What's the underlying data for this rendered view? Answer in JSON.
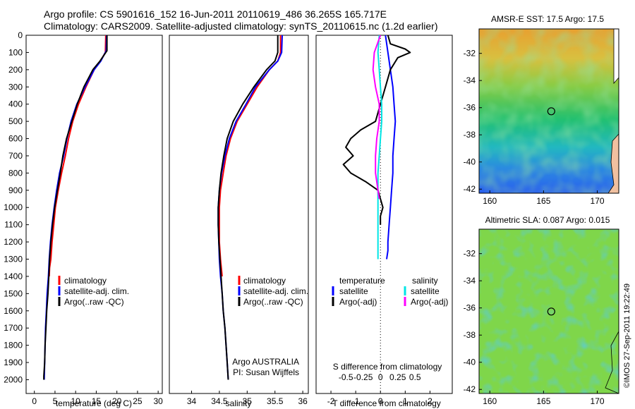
{
  "header": {
    "line1": "Argo profile: CS 5901616_152 16-Jun-2011 20110619_486 36.265S 165.717E",
    "line2": "Climatology: CARS2009. Satellite-adjusted climatology: synTS_20110615.nc (1.2d earlier)"
  },
  "credit": "©IMOS 27-Sep-2011 19:22:49",
  "argo_info": {
    "line1": "Argo AUSTRALIA",
    "line2": "PI: Susan Wijffels"
  },
  "colors": {
    "climatology": "#ff0000",
    "satellite": "#0000ff",
    "argo": "#000000",
    "sal_satellite": "#00e5e5",
    "sal_argo": "#ff00ff"
  },
  "chart_data": [
    {
      "type": "line",
      "id": "temperature",
      "xlabel": "temperature (deg C)",
      "xlim": [
        -2,
        31
      ],
      "ylim": [
        0,
        2080
      ],
      "xticks": [
        0,
        5,
        10,
        15,
        20,
        25,
        30
      ],
      "yticks": [
        0,
        100,
        200,
        300,
        400,
        500,
        600,
        700,
        800,
        900,
        1000,
        1100,
        1200,
        1300,
        1400,
        1500,
        1600,
        1700,
        1800,
        1900,
        2000
      ],
      "legend": [
        "climatology",
        "satellite-adj. clim.",
        "Argo(..raw -QC)"
      ],
      "series": [
        {
          "name": "climatology",
          "color": "#ff0000",
          "x": [
            17.3,
            17.2,
            16.0,
            14.5,
            12.5,
            10.7,
            9.3,
            8.3,
            7.5,
            6.6,
            5.8,
            5.1,
            4.7,
            4.3,
            4.0,
            3.7,
            3.6
          ],
          "y": [
            0,
            100,
            150,
            200,
            300,
            400,
            500,
            600,
            700,
            800,
            900,
            1000,
            1100,
            1200,
            1300,
            1350,
            1400
          ]
        },
        {
          "name": "satellite-adj. clim.",
          "color": "#0000ff",
          "x": [
            17.5,
            17.4,
            16.1,
            14.5,
            12.3,
            10.3,
            8.9,
            7.9,
            7.1,
            6.1,
            5.4,
            4.8,
            4.3,
            3.9,
            3.6,
            3.4,
            3.1,
            2.9,
            2.7,
            2.6,
            2.5,
            2.4
          ],
          "y": [
            0,
            90,
            150,
            200,
            300,
            400,
            500,
            600,
            700,
            800,
            900,
            1000,
            1100,
            1200,
            1300,
            1400,
            1500,
            1600,
            1700,
            1800,
            1900,
            2000
          ]
        },
        {
          "name": "Argo(..raw -QC)",
          "color": "#000000",
          "x": [
            17.6,
            17.6,
            15.9,
            14.2,
            12.0,
            10.4,
            9.1,
            7.8,
            6.9,
            6.3,
            5.6,
            4.9,
            4.4,
            4.0,
            3.7,
            3.5,
            3.3,
            3.0,
            2.8,
            2.6,
            2.5,
            2.3,
            2.3
          ],
          "y": [
            0,
            90,
            150,
            200,
            300,
            400,
            500,
            600,
            700,
            800,
            900,
            1000,
            1100,
            1200,
            1300,
            1400,
            1500,
            1600,
            1700,
            1800,
            1900,
            1980,
            2000
          ]
        }
      ]
    },
    {
      "type": "line",
      "id": "salinity",
      "xlabel": "salinity",
      "xlim": [
        33.6,
        36.1
      ],
      "ylim": [
        0,
        2080
      ],
      "xticks": [
        34,
        34.5,
        35,
        35.5,
        36
      ],
      "legend": [
        "climatology",
        "satellite-adj. clim.",
        "Argo(..raw -QC)"
      ],
      "series": [
        {
          "name": "climatology",
          "color": "#ff0000",
          "x": [
            35.6,
            35.6,
            35.55,
            35.4,
            35.18,
            35.0,
            34.82,
            34.7,
            34.62,
            34.57,
            34.52,
            34.5,
            34.5,
            34.5,
            34.52,
            34.55
          ],
          "y": [
            0,
            100,
            150,
            200,
            300,
            400,
            500,
            600,
            700,
            800,
            900,
            1000,
            1100,
            1200,
            1300,
            1400
          ]
        },
        {
          "name": "satellite-adj. clim.",
          "color": "#0000ff",
          "x": [
            35.63,
            35.62,
            35.55,
            35.4,
            35.15,
            34.98,
            34.8,
            34.68,
            34.6,
            34.54,
            34.5,
            34.48,
            34.48,
            34.49,
            34.5,
            34.52,
            34.55,
            34.57,
            34.6,
            34.62,
            34.64,
            34.66
          ],
          "y": [
            0,
            100,
            150,
            200,
            300,
            400,
            500,
            600,
            700,
            800,
            900,
            1000,
            1100,
            1200,
            1300,
            1400,
            1500,
            1600,
            1700,
            1800,
            1900,
            2000
          ]
        },
        {
          "name": "Argo(..raw -QC)",
          "color": "#000000",
          "x": [
            35.55,
            35.55,
            35.5,
            35.35,
            35.12,
            34.92,
            34.75,
            34.64,
            34.58,
            34.53,
            34.5,
            34.48,
            34.48,
            34.49,
            34.51,
            34.53,
            34.55,
            34.57,
            34.6,
            34.62,
            34.64,
            34.66
          ],
          "y": [
            0,
            100,
            150,
            200,
            300,
            400,
            500,
            600,
            700,
            800,
            900,
            1000,
            1100,
            1200,
            1300,
            1400,
            1500,
            1600,
            1700,
            1800,
            1900,
            2000
          ]
        }
      ]
    },
    {
      "type": "line",
      "id": "differences",
      "xlabel": "T difference from climatology",
      "xlabel2": "S difference from climatology",
      "xlim": [
        -2.6,
        2.9
      ],
      "ylim": [
        0,
        2080
      ],
      "xticks": [
        -2,
        -1,
        0,
        1,
        2
      ],
      "xticks_s": [
        -0.5,
        -0.25,
        0,
        0.25,
        0.5
      ],
      "xticks_s_labels": [
        "-0.5",
        "-0.25",
        "0",
        "0.25",
        "0.5"
      ],
      "legend_temperature_title": "temperature",
      "legend_salinity_title": "salinity",
      "legend": [
        "satellite",
        "Argo(-adj)",
        "satellite",
        "Argo(-adj)"
      ],
      "series": [
        {
          "name": "satellite",
          "color": "#0000ff",
          "x": [
            0.2,
            0.3,
            0.4,
            0.5,
            0.55,
            0.6,
            0.55,
            0.5,
            0.5,
            0.45,
            0.4,
            0.35,
            0.3,
            0.3,
            0.25
          ],
          "y": [
            0,
            100,
            200,
            300,
            400,
            500,
            600,
            700,
            800,
            900,
            1000,
            1100,
            1200,
            1250,
            1300
          ]
        },
        {
          "name": "Argo(-adj)",
          "color": "#000000",
          "x": [
            0.3,
            0.4,
            1.0,
            1.2,
            0.7,
            0.4,
            0.2,
            0.0,
            -0.2,
            -0.8,
            -1.2,
            -1.4,
            -1.1,
            -1.5,
            -1.2,
            -0.6,
            -0.1,
            0.0,
            0.1,
            0.0,
            0.0
          ],
          "y": [
            0,
            50,
            80,
            100,
            130,
            200,
            300,
            400,
            500,
            550,
            600,
            650,
            700,
            750,
            800,
            850,
            900,
            950,
            1000,
            1050,
            1100
          ]
        },
        {
          "name": "satellite",
          "color": "#00e5e5",
          "x": [
            -0.05,
            -0.1,
            -0.05,
            0.0,
            0.05,
            0.05,
            0.0,
            -0.05,
            -0.1,
            -0.1,
            -0.1,
            -0.1,
            -0.1
          ],
          "y": [
            0,
            100,
            200,
            300,
            400,
            500,
            600,
            700,
            800,
            900,
            1000,
            1100,
            1300
          ]
        },
        {
          "name": "Argo(-adj)",
          "color": "#ff00ff",
          "x": [
            0.0,
            -0.25,
            -0.3,
            -0.2,
            -0.05,
            -0.05,
            -0.15,
            -0.2,
            -0.2,
            -0.15,
            -0.1,
            -0.05
          ],
          "y": [
            0,
            100,
            200,
            300,
            400,
            500,
            600,
            700,
            800,
            850,
            900,
            950
          ]
        }
      ]
    },
    {
      "type": "heatmap",
      "id": "sst-map",
      "title": "AMSR-E SST: 17.5 Argo: 17.5",
      "xlim": [
        159,
        172
      ],
      "ylim": [
        -42.3,
        -30.2
      ],
      "xticks": [
        160,
        165,
        170
      ],
      "yticks": [
        -32,
        -34,
        -36,
        -38,
        -40,
        -42
      ],
      "marker": {
        "lon": 165.717,
        "lat": -36.265
      }
    },
    {
      "type": "heatmap",
      "id": "sla-map",
      "title": "Altimetric SLA: 0.087 Argo: 0.015",
      "xlim": [
        159,
        172
      ],
      "ylim": [
        -42.3,
        -30.2
      ],
      "xticks": [
        160,
        165,
        170
      ],
      "yticks": [
        -32,
        -34,
        -36,
        -38,
        -40,
        -42
      ],
      "marker": {
        "lon": 165.717,
        "lat": -36.265
      }
    }
  ]
}
